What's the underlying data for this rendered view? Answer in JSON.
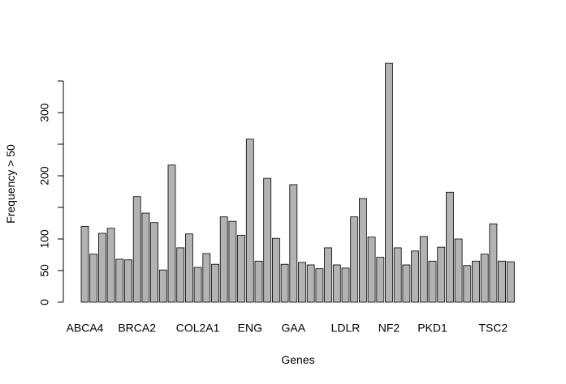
{
  "chart_data": {
    "type": "bar",
    "xlabel": "Genes",
    "ylabel": "Frequency > 50",
    "categories": [
      "ABCA4",
      null,
      null,
      null,
      null,
      null,
      "BRCA2",
      null,
      null,
      null,
      null,
      null,
      null,
      "COL2A1",
      null,
      null,
      null,
      null,
      null,
      "ENG",
      null,
      null,
      null,
      null,
      "GAA",
      null,
      null,
      null,
      null,
      null,
      "LDLR",
      null,
      null,
      null,
      null,
      "NF2",
      null,
      null,
      null,
      null,
      "PKD1",
      null,
      null,
      null,
      null,
      null,
      null,
      "TSC2",
      null,
      null
    ],
    "values": [
      120,
      76,
      109,
      117,
      68,
      67,
      167,
      141,
      126,
      51,
      217,
      86,
      108,
      55,
      77,
      60,
      135,
      128,
      106,
      258,
      65,
      196,
      101,
      60,
      186,
      63,
      59,
      53,
      86,
      59,
      54,
      135,
      164,
      103,
      71,
      378,
      86,
      59,
      81,
      104,
      65,
      87,
      174,
      100,
      58,
      65,
      76,
      124,
      65,
      64
    ],
    "color": "#b3b3b3",
    "ylim": [
      0,
      400
    ],
    "yticks": [
      0,
      50,
      100,
      200,
      300
    ],
    "yminorticks": [
      150,
      250,
      350
    ],
    "grid": false
  }
}
